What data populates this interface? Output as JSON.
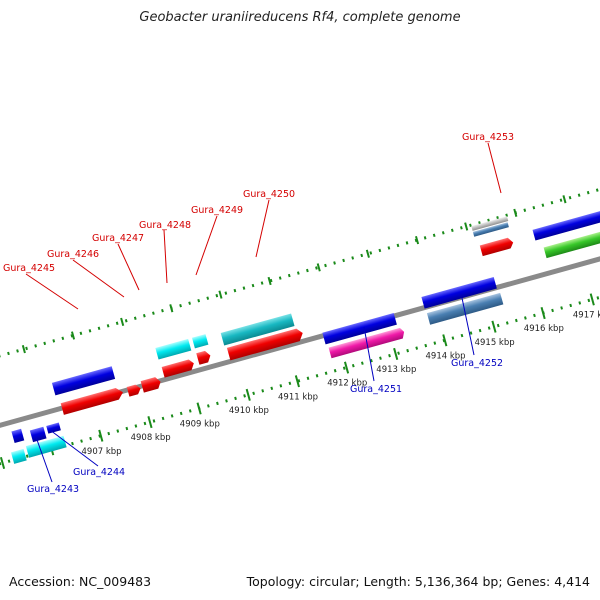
{
  "title": "Geobacter uraniireducens Rf4, complete genome",
  "footer": {
    "accession": "Accession: NC_009483",
    "stats": "Topology: circular; Length: 5,136,364 bp; Genes: 4,414"
  },
  "colors": {
    "forward_label": "#d40000",
    "reverse_label": "#0000c0",
    "backbone": "#8a8a8a",
    "ticks": "#1a8a1a"
  },
  "scale_labels": [
    "4907 kbp",
    "4908 kbp",
    "4909 kbp",
    "4910 kbp",
    "4911 kbp",
    "4912 kbp",
    "4913 kbp",
    "4914 kbp",
    "4915 kbp",
    "4916 kbp",
    "4917 kbp"
  ],
  "gene_labels": [
    {
      "text": "Gura_4245",
      "strand": "forward"
    },
    {
      "text": "Gura_4246",
      "strand": "forward"
    },
    {
      "text": "Gura_4247",
      "strand": "forward"
    },
    {
      "text": "Gura_4248",
      "strand": "forward"
    },
    {
      "text": "Gura_4249",
      "strand": "forward"
    },
    {
      "text": "Gura_4250",
      "strand": "forward"
    },
    {
      "text": "Gura_4253",
      "strand": "forward"
    },
    {
      "text": "Gura_4251",
      "strand": "reverse"
    },
    {
      "text": "Gura_4252",
      "strand": "reverse"
    },
    {
      "text": "Gura_4243",
      "strand": "reverse"
    },
    {
      "text": "Gura_4244",
      "strand": "reverse"
    }
  ]
}
